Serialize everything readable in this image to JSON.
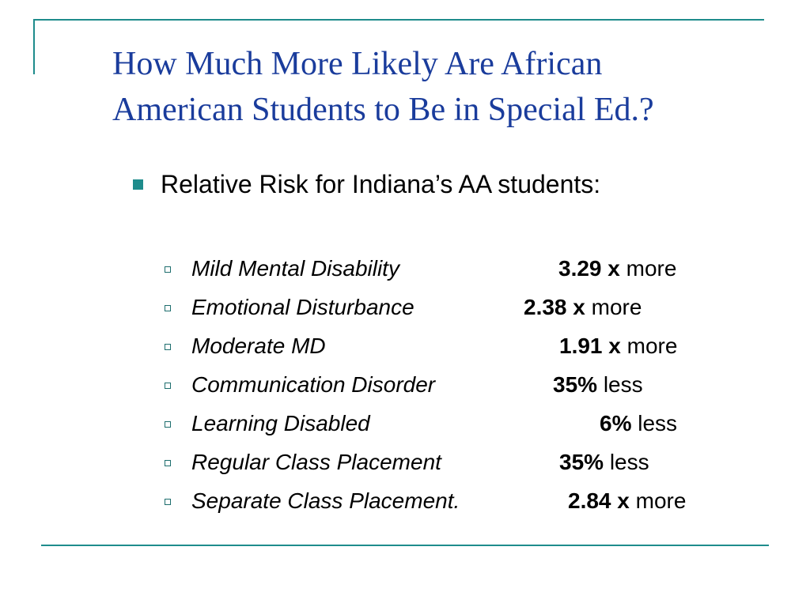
{
  "slide": {
    "title_line1": "How Much More Likely Are African",
    "title_line2": "American Students to Be in Special Ed.?",
    "bullet": "Relative Risk for Indiana’s AA students:",
    "items": [
      {
        "label": "Mild Mental Disability",
        "value": "3.29 x",
        "direction": "more"
      },
      {
        "label": "Emotional Disturbance",
        "value": "2.38 x",
        "direction": "more"
      },
      {
        "label": "Moderate MD",
        "value": "1.91 x",
        "direction": "more"
      },
      {
        "label": "Communication Disorder",
        "value": "35%",
        "direction": "less"
      },
      {
        "label": "Learning Disabled",
        "value": "6%",
        "direction": "less"
      },
      {
        "label": "Regular Class Placement",
        "value": "35%",
        "direction": "less"
      },
      {
        "label": "Separate Class Placement.",
        "value": "2.84 x",
        "direction": "more"
      }
    ]
  },
  "colors": {
    "title": "#1a3c9c",
    "accent": "#1e8c8c",
    "text": "#000000"
  }
}
